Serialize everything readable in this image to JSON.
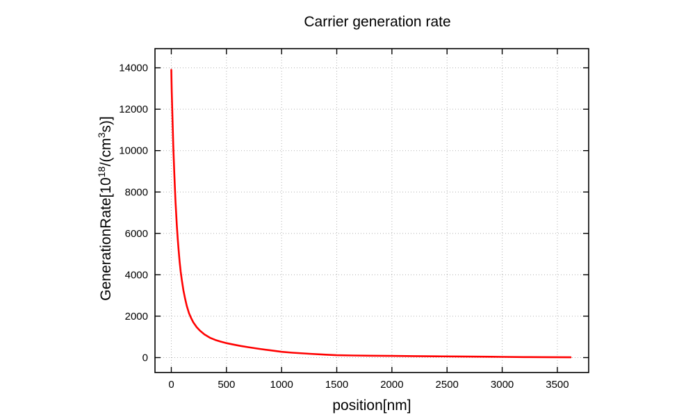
{
  "chart_data": {
    "type": "line",
    "title": "Carrier generation rate",
    "xlabel": "position[nm]",
    "ylabel_parts": {
      "pre": "GenerationRate[10",
      "sup1": "18",
      "mid": "/(cm",
      "sup2": "3",
      "post": "s)]"
    },
    "x_ticks": [
      0,
      500,
      1000,
      1500,
      2000,
      2500,
      3000,
      3500
    ],
    "y_ticks": [
      0,
      2000,
      4000,
      6000,
      8000,
      10000,
      12000,
      14000
    ],
    "xlim": [
      -148,
      3784
    ],
    "ylim": [
      -722,
      14926
    ],
    "grid": "dotted",
    "legend": "none",
    "colors": {
      "line": "#ff0000",
      "grid": "#b0b0b0",
      "border": "#000000",
      "background": "#ffffff"
    },
    "series": [
      {
        "name": "carrier generation rate",
        "color": "#ff0000",
        "points": [
          [
            0,
            13900
          ],
          [
            2,
            13350
          ],
          [
            4,
            12850
          ],
          [
            7,
            12250
          ],
          [
            10,
            11650
          ],
          [
            14,
            10950
          ],
          [
            18,
            10250
          ],
          [
            22,
            9600
          ],
          [
            27,
            8900
          ],
          [
            32,
            8250
          ],
          [
            38,
            7550
          ],
          [
            44,
            6950
          ],
          [
            50,
            6400
          ],
          [
            58,
            5750
          ],
          [
            66,
            5200
          ],
          [
            75,
            4650
          ],
          [
            85,
            4150
          ],
          [
            95,
            3750
          ],
          [
            110,
            3250
          ],
          [
            125,
            2850
          ],
          [
            140,
            2500
          ],
          [
            160,
            2150
          ],
          [
            180,
            1900
          ],
          [
            200,
            1700
          ],
          [
            230,
            1470
          ],
          [
            260,
            1300
          ],
          [
            300,
            1120
          ],
          [
            350,
            960
          ],
          [
            400,
            850
          ],
          [
            450,
            770
          ],
          [
            500,
            700
          ],
          [
            560,
            630
          ],
          [
            630,
            560
          ],
          [
            700,
            500
          ],
          [
            800,
            420
          ],
          [
            900,
            350
          ],
          [
            1000,
            280
          ],
          [
            1100,
            235
          ],
          [
            1250,
            185
          ],
          [
            1400,
            140
          ],
          [
            1500,
            115
          ],
          [
            1650,
            100
          ],
          [
            1800,
            90
          ],
          [
            2000,
            80
          ],
          [
            2200,
            70
          ],
          [
            2400,
            62
          ],
          [
            2600,
            55
          ],
          [
            2800,
            45
          ],
          [
            2900,
            40
          ],
          [
            3000,
            32
          ],
          [
            3200,
            25
          ],
          [
            3400,
            20
          ],
          [
            3600,
            15
          ],
          [
            3620,
            14
          ]
        ]
      }
    ]
  }
}
